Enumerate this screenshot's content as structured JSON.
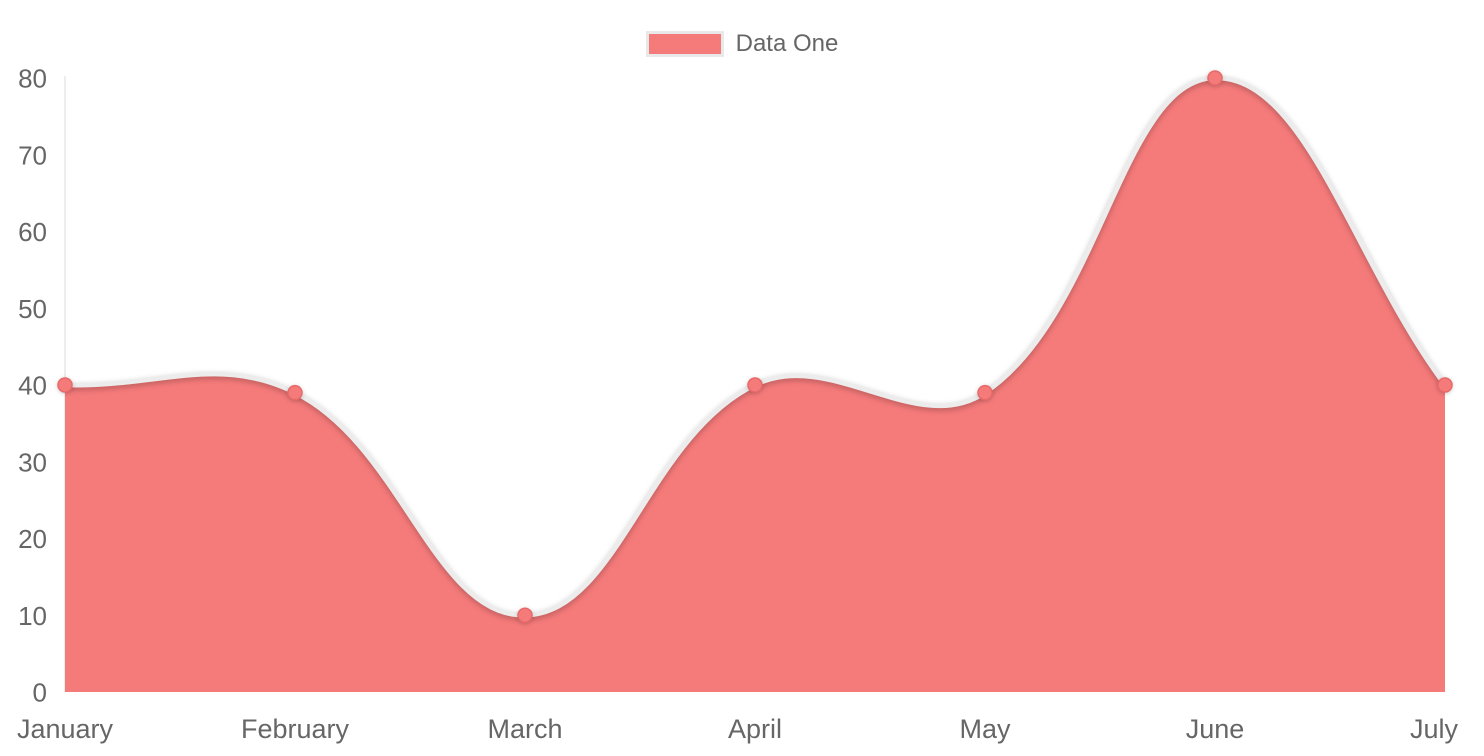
{
  "chart_data": {
    "type": "area",
    "title": "",
    "xlabel": "",
    "ylabel": "",
    "categories": [
      "January",
      "February",
      "March",
      "April",
      "May",
      "June",
      "July"
    ],
    "series": [
      {
        "name": "Data One",
        "values": [
          40,
          39,
          10,
          40,
          39,
          80,
          40
        ]
      }
    ],
    "ylim": [
      0,
      80
    ],
    "ytick_step": 10,
    "ytick_labels": [
      "0",
      "10",
      "20",
      "30",
      "40",
      "50",
      "60",
      "70",
      "80"
    ],
    "grid": false,
    "legend_position": "top-center",
    "smooth": true,
    "colors": {
      "area_fill": "#F57A7A",
      "line": "#ECECEC",
      "point_fill": "#F57A7A",
      "point_border": "#E86969",
      "axis_line": "#E7E7E7",
      "tick_text": "#666666",
      "legend_text": "#666666",
      "legend_swatch_border": "#E9E9E9"
    }
  }
}
